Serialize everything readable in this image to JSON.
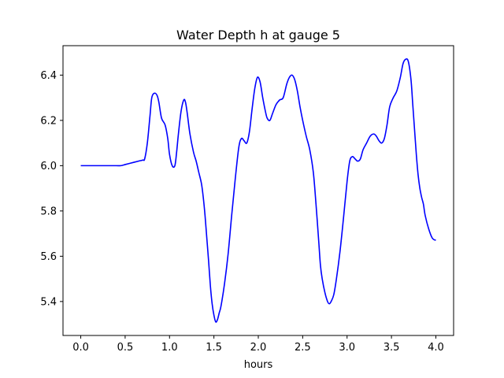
{
  "chart_data": {
    "type": "line",
    "title": "Water Depth h at gauge 5",
    "xlabel": "hours",
    "ylabel": "",
    "xlim": [
      -0.2,
      4.2
    ],
    "ylim": [
      5.25,
      6.53
    ],
    "xticks": [
      0.0,
      0.5,
      1.0,
      1.5,
      2.0,
      2.5,
      3.0,
      3.5,
      4.0
    ],
    "xtick_labels": [
      "0.0",
      "0.5",
      "1.0",
      "1.5",
      "2.0",
      "2.5",
      "3.0",
      "3.5",
      "4.0"
    ],
    "yticks": [
      5.4,
      5.6,
      5.8,
      6.0,
      6.2,
      6.4
    ],
    "ytick_labels": [
      "5.4",
      "5.6",
      "5.8",
      "6.0",
      "6.2",
      "6.4"
    ],
    "grid": false,
    "color": "#0000ff",
    "series": [
      {
        "x": [
          0.0,
          0.1,
          0.2,
          0.3,
          0.4,
          0.45,
          0.5,
          0.55,
          0.6,
          0.65,
          0.7,
          0.72,
          0.75,
          0.78,
          0.8,
          0.83,
          0.86,
          0.88,
          0.91,
          0.95,
          0.98,
          1.0,
          1.03,
          1.06,
          1.08,
          1.1,
          1.13,
          1.16,
          1.18,
          1.2,
          1.23,
          1.27,
          1.3,
          1.33,
          1.36,
          1.38,
          1.4,
          1.42,
          1.44,
          1.46,
          1.48,
          1.5,
          1.52,
          1.54,
          1.56,
          1.58,
          1.62,
          1.66,
          1.7,
          1.74,
          1.78,
          1.81,
          1.84,
          1.87,
          1.9,
          1.93,
          1.96,
          1.99,
          2.02,
          2.05,
          2.08,
          2.1,
          2.13,
          2.16,
          2.2,
          2.24,
          2.28,
          2.32,
          2.35,
          2.38,
          2.41,
          2.44,
          2.47,
          2.5,
          2.54,
          2.58,
          2.62,
          2.65,
          2.68,
          2.7,
          2.72,
          2.75,
          2.78,
          2.8,
          2.82,
          2.85,
          2.88,
          2.92,
          2.96,
          3.0,
          3.03,
          3.06,
          3.09,
          3.12,
          3.15,
          3.18,
          3.22,
          3.26,
          3.3,
          3.33,
          3.36,
          3.39,
          3.42,
          3.45,
          3.48,
          3.52,
          3.56,
          3.6,
          3.63,
          3.66,
          3.69,
          3.72,
          3.74,
          3.76,
          3.78,
          3.8,
          3.82,
          3.84,
          3.86,
          3.88,
          3.92,
          3.96,
          4.0
        ],
        "y": [
          6.0,
          6.0,
          6.0,
          6.0,
          6.0,
          6.0,
          6.005,
          6.01,
          6.015,
          6.02,
          6.025,
          6.03,
          6.1,
          6.22,
          6.3,
          6.32,
          6.31,
          6.28,
          6.21,
          6.18,
          6.12,
          6.05,
          6.0,
          6.0,
          6.06,
          6.14,
          6.24,
          6.29,
          6.28,
          6.23,
          6.14,
          6.06,
          6.02,
          5.97,
          5.92,
          5.86,
          5.78,
          5.68,
          5.58,
          5.47,
          5.39,
          5.34,
          5.31,
          5.32,
          5.35,
          5.38,
          5.48,
          5.61,
          5.78,
          5.94,
          6.08,
          6.12,
          6.11,
          6.1,
          6.15,
          6.25,
          6.34,
          6.39,
          6.37,
          6.3,
          6.24,
          6.21,
          6.2,
          6.23,
          6.27,
          6.29,
          6.3,
          6.36,
          6.39,
          6.4,
          6.38,
          6.33,
          6.26,
          6.2,
          6.13,
          6.07,
          5.97,
          5.83,
          5.67,
          5.56,
          5.5,
          5.44,
          5.4,
          5.39,
          5.4,
          5.43,
          5.5,
          5.62,
          5.77,
          5.93,
          6.02,
          6.04,
          6.03,
          6.02,
          6.03,
          6.07,
          6.1,
          6.13,
          6.14,
          6.13,
          6.11,
          6.1,
          6.12,
          6.18,
          6.26,
          6.3,
          6.33,
          6.39,
          6.45,
          6.47,
          6.46,
          6.38,
          6.27,
          6.16,
          6.05,
          5.96,
          5.9,
          5.86,
          5.83,
          5.78,
          5.72,
          5.68,
          5.67
        ]
      }
    ]
  }
}
